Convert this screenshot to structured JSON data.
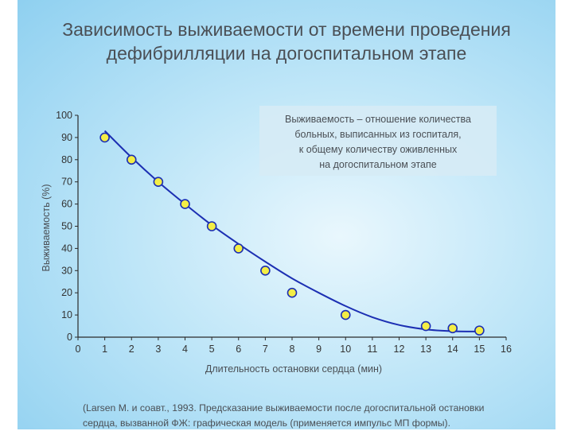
{
  "title_lines": [
    "Зависимость выживаемости от времени проведения",
    "дефибрилляции на догоспитальном этапе"
  ],
  "citation_lines": [
    "(Larsen M. и соавт., 1993. Предсказание выживаемости после догоспитальной остановки",
    "сердца, вызванной ФЖ: графическая модель (применяется импульс МП формы)."
  ],
  "colors": {
    "curve": "#1c2fb3",
    "marker_fill": "#f4ee45",
    "marker_stroke": "#1c2fb3",
    "axis": "#2a2a2a",
    "text": "#4a4f55",
    "note_bg": "#d6ebf5"
  },
  "chart_data": {
    "type": "scatter",
    "xlabel": "Длительность остановки сердца (мин)",
    "ylabel": "Выживаемость (%)",
    "xlim": [
      0,
      16
    ],
    "ylim": [
      0,
      100
    ],
    "x_ticks": [
      0,
      1,
      2,
      3,
      4,
      5,
      6,
      7,
      8,
      9,
      10,
      11,
      12,
      13,
      14,
      15,
      16
    ],
    "y_ticks": [
      0,
      10,
      20,
      30,
      40,
      50,
      60,
      70,
      80,
      90,
      100
    ],
    "points": {
      "x": [
        1,
        2,
        3,
        4,
        5,
        6,
        7,
        8,
        10,
        13,
        14,
        15
      ],
      "y": [
        90,
        80,
        70,
        60,
        50,
        40,
        30,
        20,
        10,
        5,
        4,
        3
      ]
    },
    "trend_curve": {
      "x": [
        1,
        2,
        3,
        4,
        5,
        6,
        7,
        8,
        9,
        10,
        11,
        12,
        13,
        14,
        15
      ],
      "y": [
        93,
        81,
        70,
        60,
        50.5,
        42,
        34,
        26.5,
        20,
        14,
        9,
        5.5,
        3.5,
        2.7,
        2.5
      ]
    },
    "annotation": [
      "Выживаемость – отношение количества",
      "больных, выписанных из госпиталя,",
      "к общему количеству оживленных",
      "на догоспитальном этапе"
    ]
  }
}
